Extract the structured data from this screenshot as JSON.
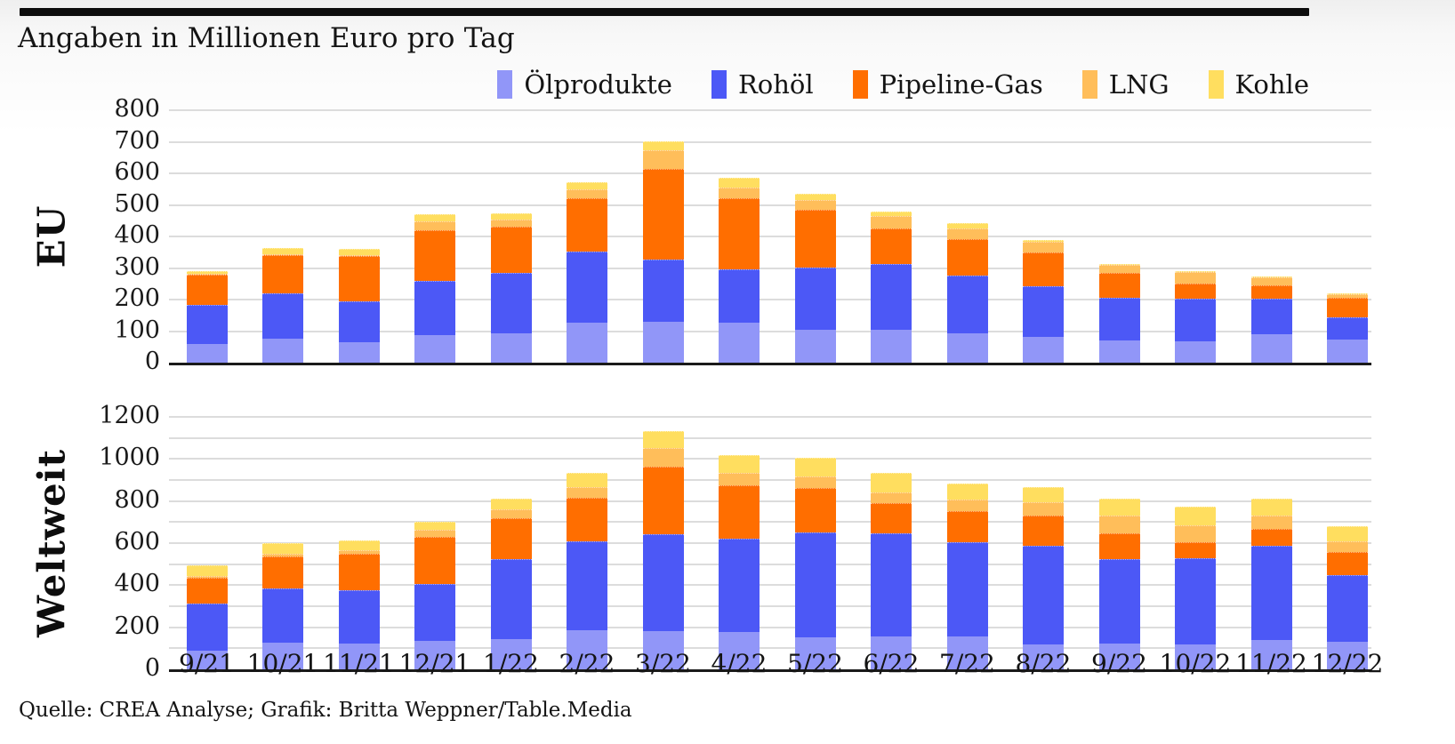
{
  "page": {
    "subtitle": "Angaben in Millionen Euro pro Tag",
    "footer": "Quelle: CREA Analyse; Grafik: Britta Weppner/Table.Media",
    "units": "Millionen Euro pro Tag"
  },
  "colors": {
    "oelprodukte": "#9196F8",
    "rohoel": "#4C58F6",
    "pipeline_gas": "#FF6E00",
    "lng": "#FFBE5A",
    "kohle": "#FFDE5F",
    "gridline": "#dcdcdc",
    "axis": "#1a1a1a",
    "top_rule": "#0d0d0d"
  },
  "legend": {
    "items": [
      {
        "label": "Ölprodukte",
        "color": "#9196F8"
      },
      {
        "label": "Rohöl",
        "color": "#4C58F6"
      },
      {
        "label": "Pipeline-Gas",
        "color": "#FF6E00"
      },
      {
        "label": "LNG",
        "color": "#FFBE5A"
      },
      {
        "label": "Kohle",
        "color": "#FFDE5F"
      }
    ]
  },
  "chart_data": [
    {
      "type": "bar",
      "stacked": true,
      "title": "EU",
      "categories": [
        "9/21",
        "10/21",
        "11/21",
        "12/21",
        "1/22",
        "2/22",
        "3/22",
        "4/22",
        "5/22",
        "6/22",
        "7/22",
        "8/22",
        "9/22",
        "10/22",
        "11/22",
        "12/22"
      ],
      "series": [
        {
          "name": "Ölprodukte",
          "color": "#9196F8",
          "values": [
            59,
            77,
            65,
            87,
            93,
            126,
            129,
            126,
            104,
            103,
            93,
            81,
            70,
            68,
            89,
            72
          ]
        },
        {
          "name": "Rohöl",
          "color": "#4C58F6",
          "values": [
            125,
            143,
            130,
            172,
            192,
            226,
            197,
            171,
            198,
            209,
            184,
            161,
            135,
            135,
            114,
            73
          ]
        },
        {
          "name": "Pipeline-Gas",
          "color": "#FF6E00",
          "values": [
            94,
            120,
            143,
            162,
            147,
            168,
            287,
            225,
            183,
            114,
            115,
            107,
            80,
            47,
            41,
            60
          ]
        },
        {
          "name": "LNG",
          "color": "#FFBE5A",
          "values": [
            5,
            5,
            4,
            28,
            22,
            30,
            59,
            33,
            30,
            38,
            32,
            34,
            25,
            36,
            26,
            13
          ]
        },
        {
          "name": "Kohle",
          "color": "#FFDE5F",
          "values": [
            8,
            18,
            19,
            21,
            20,
            21,
            29,
            31,
            20,
            15,
            18,
            6,
            3,
            2,
            2,
            2
          ]
        }
      ],
      "ylim": [
        0,
        800
      ],
      "grid_step": 100,
      "ytick_labels": [
        "0",
        "100",
        "200",
        "300",
        "400",
        "500",
        "600",
        "700",
        "800"
      ],
      "grid": true,
      "legend_position": "top",
      "show_x_labels": false
    },
    {
      "type": "bar",
      "stacked": true,
      "title": "Weltweit",
      "categories": [
        "9/21",
        "10/21",
        "11/21",
        "12/21",
        "1/22",
        "2/22",
        "3/22",
        "4/22",
        "5/22",
        "6/22",
        "7/22",
        "8/22",
        "9/22",
        "10/22",
        "11/22",
        "12/22"
      ],
      "series": [
        {
          "name": "Ölprodukte",
          "color": "#9196F8",
          "values": [
            87,
            127,
            122,
            137,
            144,
            186,
            180,
            176,
            152,
            158,
            156,
            120,
            121,
            117,
            141,
            130
          ]
        },
        {
          "name": "Rohöl",
          "color": "#4C58F6",
          "values": [
            226,
            256,
            255,
            269,
            380,
            422,
            461,
            444,
            499,
            490,
            449,
            469,
            404,
            413,
            446,
            316
          ]
        },
        {
          "name": "Pipeline-Gas",
          "color": "#FF6E00",
          "values": [
            124,
            155,
            173,
            224,
            194,
            206,
            324,
            256,
            211,
            143,
            148,
            141,
            120,
            75,
            82,
            113
          ]
        },
        {
          "name": "LNG",
          "color": "#FFBE5A",
          "values": [
            8,
            10,
            15,
            32,
            42,
            52,
            88,
            56,
            56,
            51,
            54,
            63,
            85,
            80,
            63,
            49
          ]
        },
        {
          "name": "Kohle",
          "color": "#FFDE5F",
          "values": [
            48,
            53,
            48,
            38,
            50,
            66,
            78,
            86,
            89,
            90,
            77,
            75,
            80,
            87,
            78,
            74
          ]
        }
      ],
      "ylim": [
        0,
        1200
      ],
      "grid_step": 100,
      "ytick_labels": [
        "0",
        "200",
        "400",
        "600",
        "800",
        "1000",
        "1200"
      ],
      "grid": true,
      "legend_position": "top",
      "show_x_labels": true
    }
  ]
}
